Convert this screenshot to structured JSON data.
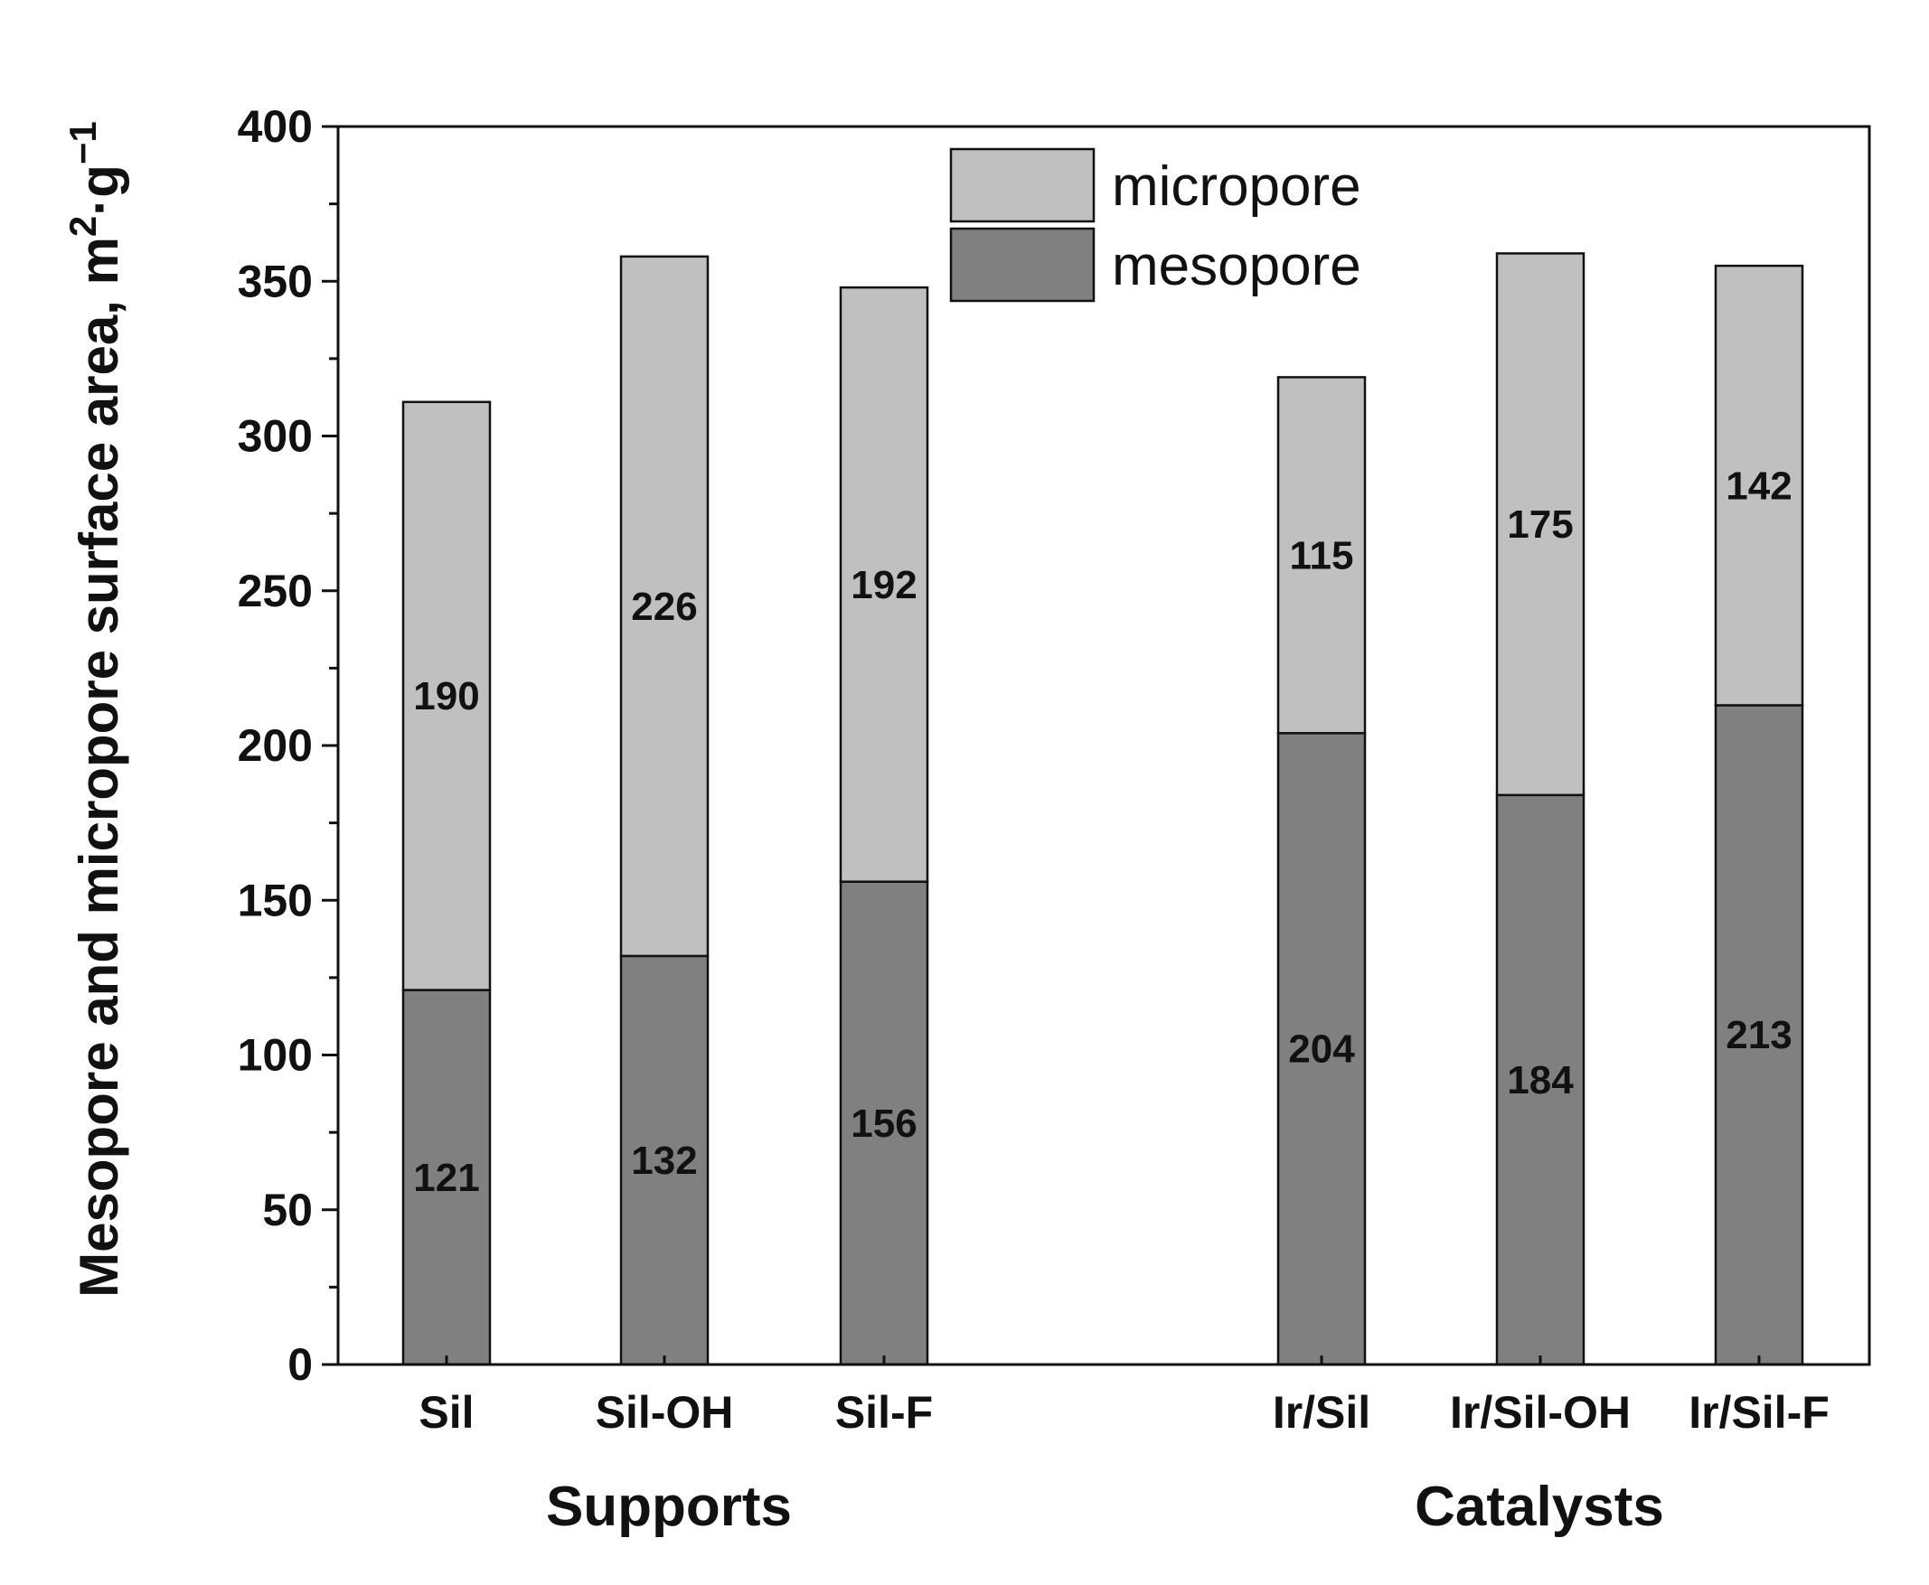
{
  "chart_data": {
    "type": "bar",
    "stacked": true,
    "title": "",
    "ylabel": "Mesopore and micropore surface area, m",
    "ylabel_unit_parts": {
      "sup1": "2",
      "mid": "·g",
      "sup2": "−1"
    },
    "xlabel": "",
    "ylim": [
      0,
      400
    ],
    "yticks": [
      0,
      50,
      100,
      150,
      200,
      250,
      300,
      350,
      400
    ],
    "grid": false,
    "legend_position": "top-center",
    "categories": [
      "Sil",
      "Sil-OH",
      "Sil-F",
      "Ir/Sil",
      "Ir/Sil-OH",
      "Ir/Sil-F"
    ],
    "groups": [
      {
        "label": "Supports",
        "categories": [
          "Sil",
          "Sil-OH",
          "Sil-F"
        ]
      },
      {
        "label": "Catalysts",
        "categories": [
          "Ir/Sil",
          "Ir/Sil-OH",
          "Ir/Sil-F"
        ]
      }
    ],
    "series": [
      {
        "name": "mesopore",
        "color": "#808080",
        "values": [
          121,
          132,
          156,
          204,
          184,
          213
        ]
      },
      {
        "name": "micropore",
        "color": "#c0c0c0",
        "values": [
          190,
          226,
          192,
          115,
          175,
          142
        ]
      }
    ],
    "legend_order": [
      "micropore",
      "mesopore"
    ]
  }
}
